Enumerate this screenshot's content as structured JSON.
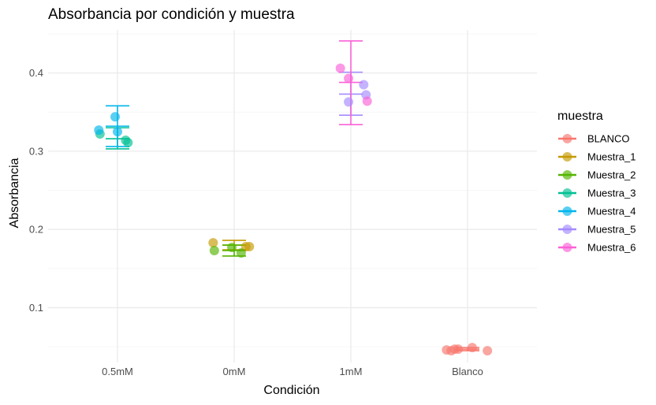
{
  "chart_data": {
    "type": "scatter",
    "title": "Absorbancia por condición y muestra",
    "xlabel": "Condición",
    "ylabel": "Absorbancia",
    "categories": [
      "0.5mM",
      "0mM",
      "1mM",
      "Blanco"
    ],
    "ylim": [
      0.03,
      0.455
    ],
    "yticks": [
      0.1,
      0.2,
      0.3,
      0.4
    ],
    "grid": true,
    "legend": {
      "title": "muestra",
      "position": "right"
    },
    "series": [
      {
        "name": "BLANCO",
        "color": "#F8766D",
        "points": [
          {
            "category": "Blanco",
            "offset": -0.18,
            "y": 0.046
          },
          {
            "category": "Blanco",
            "offset": -0.14,
            "y": 0.045
          },
          {
            "category": "Blanco",
            "offset": -0.11,
            "y": 0.047
          },
          {
            "category": "Blanco",
            "offset": -0.08,
            "y": 0.047
          },
          {
            "category": "Blanco",
            "offset": 0.04,
            "y": 0.049
          },
          {
            "category": "Blanco",
            "offset": 0.17,
            "y": 0.045
          }
        ],
        "errorbars": [
          {
            "category": "Blanco",
            "y": 0.047,
            "ymin": 0.045,
            "ymax": 0.049
          }
        ]
      },
      {
        "name": "Muestra_1",
        "color": "#C49A00",
        "points": [
          {
            "category": "0mM",
            "offset": -0.18,
            "y": 0.183
          },
          {
            "category": "0mM",
            "offset": 0.1,
            "y": 0.178
          },
          {
            "category": "0mM",
            "offset": 0.13,
            "y": 0.178
          }
        ],
        "errorbars": [
          {
            "category": "0mM",
            "y": 0.18,
            "ymin": 0.174,
            "ymax": 0.186
          }
        ]
      },
      {
        "name": "Muestra_2",
        "color": "#53B400",
        "points": [
          {
            "category": "0mM",
            "offset": -0.17,
            "y": 0.173
          },
          {
            "category": "0mM",
            "offset": -0.02,
            "y": 0.177
          },
          {
            "category": "0mM",
            "offset": 0.06,
            "y": 0.17
          }
        ],
        "errorbars": [
          {
            "category": "0mM",
            "y": 0.173,
            "ymin": 0.166,
            "ymax": 0.18
          }
        ]
      },
      {
        "name": "Muestra_3",
        "color": "#00C094",
        "points": [
          {
            "category": "0.5mM",
            "offset": -0.15,
            "y": 0.322
          },
          {
            "category": "0.5mM",
            "offset": 0.07,
            "y": 0.314
          },
          {
            "category": "0.5mM",
            "offset": 0.09,
            "y": 0.311
          }
        ],
        "errorbars": [
          {
            "category": "0.5mM",
            "y": 0.316,
            "ymin": 0.303,
            "ymax": 0.33
          }
        ]
      },
      {
        "name": "Muestra_4",
        "color": "#00B6EB",
        "points": [
          {
            "category": "0.5mM",
            "offset": -0.16,
            "y": 0.327
          },
          {
            "category": "0.5mM",
            "offset": -0.02,
            "y": 0.344
          },
          {
            "category": "0.5mM",
            "offset": 0.0,
            "y": 0.325
          }
        ],
        "errorbars": [
          {
            "category": "0.5mM",
            "y": 0.332,
            "ymin": 0.306,
            "ymax": 0.358
          }
        ]
      },
      {
        "name": "Muestra_5",
        "color": "#A58AFF",
        "points": [
          {
            "category": "1mM",
            "offset": -0.02,
            "y": 0.363
          },
          {
            "category": "1mM",
            "offset": 0.11,
            "y": 0.385
          },
          {
            "category": "1mM",
            "offset": 0.13,
            "y": 0.372
          }
        ],
        "errorbars": [
          {
            "category": "1mM",
            "y": 0.373,
            "ymin": 0.346,
            "ymax": 0.401
          }
        ]
      },
      {
        "name": "Muestra_6",
        "color": "#FB61D7",
        "points": [
          {
            "category": "1mM",
            "offset": -0.09,
            "y": 0.406
          },
          {
            "category": "1mM",
            "offset": -0.02,
            "y": 0.393
          },
          {
            "category": "1mM",
            "offset": 0.14,
            "y": 0.364
          }
        ],
        "errorbars": [
          {
            "category": "1mM",
            "y": 0.388,
            "ymin": 0.334,
            "ymax": 0.441
          }
        ]
      }
    ]
  }
}
